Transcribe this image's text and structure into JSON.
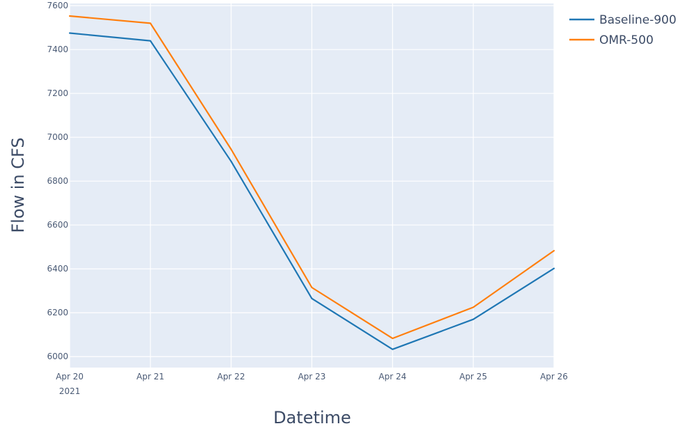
{
  "chart_data": {
    "type": "line",
    "title": "",
    "xlabel": "Datetime",
    "ylabel": "Flow in CFS",
    "x": [
      "2021-04-20",
      "2021-04-21",
      "2021-04-22",
      "2021-04-23",
      "2021-04-24",
      "2021-04-25",
      "2021-04-26"
    ],
    "x_tick_labels": [
      "Apr 20",
      "Apr 21",
      "Apr 22",
      "Apr 23",
      "Apr 24",
      "Apr 25",
      "Apr 26"
    ],
    "x_year_label": "2021",
    "y_ticks": [
      6000,
      6200,
      6400,
      6600,
      6800,
      7000,
      7200,
      7400,
      7600
    ],
    "ylim": [
      5950,
      7610
    ],
    "grid": true,
    "legend_position": "top-right, outside plot",
    "background_color": "#e5ecf6",
    "series": [
      {
        "name": "Baseline-900",
        "color": "#1f77b4",
        "values": [
          7475,
          7440,
          6890,
          6265,
          6033,
          6170,
          6402
        ]
      },
      {
        "name": "OMR-500",
        "color": "#ff7f0e",
        "values": [
          7553,
          7520,
          6945,
          6315,
          6083,
          6225,
          6483
        ]
      }
    ]
  }
}
